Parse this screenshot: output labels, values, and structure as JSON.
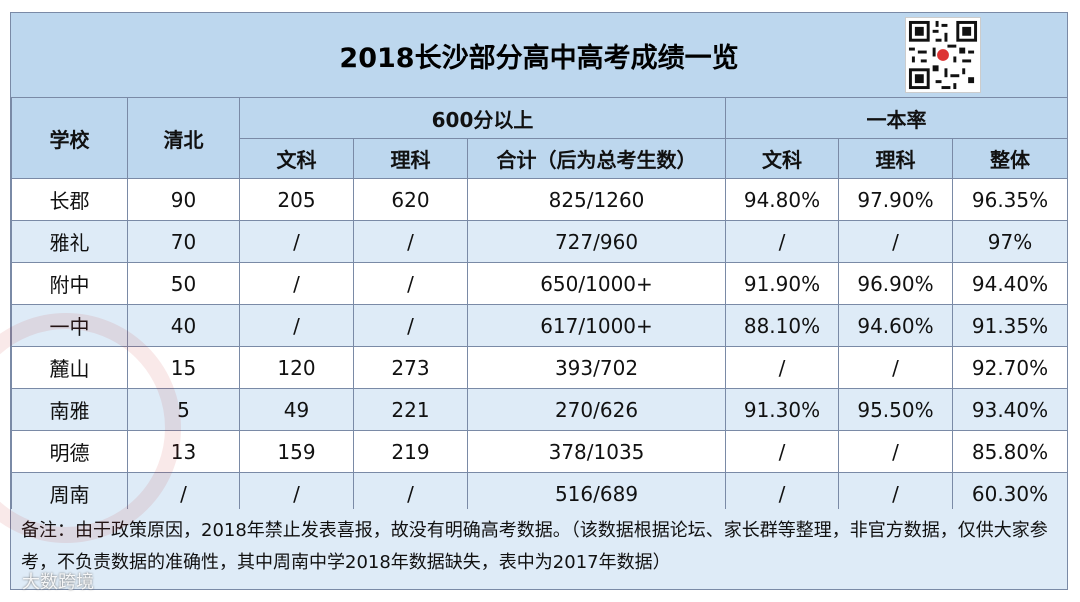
{
  "title": "2018长沙部分高中高考成绩一览",
  "header": {
    "school": "学校",
    "qingbei": "清北",
    "above600": "600分以上",
    "yiben": "一本率",
    "wenke": "文科",
    "like": "理科",
    "total": "合计（后为总考生数）",
    "overall": "整体"
  },
  "rows": [
    {
      "school": "长郡",
      "qingbei": "90",
      "wen600": "205",
      "li600": "620",
      "total": "825/1260",
      "wenRate": "94.80%",
      "liRate": "97.90%",
      "overall": "96.35%"
    },
    {
      "school": "雅礼",
      "qingbei": "70",
      "wen600": "/",
      "li600": "/",
      "total": "727/960",
      "wenRate": "/",
      "liRate": "/",
      "overall": "97%"
    },
    {
      "school": "附中",
      "qingbei": "50",
      "wen600": "/",
      "li600": "/",
      "total": "650/1000+",
      "wenRate": "91.90%",
      "liRate": "96.90%",
      "overall": "94.40%"
    },
    {
      "school": "一中",
      "qingbei": "40",
      "wen600": "/",
      "li600": "/",
      "total": "617/1000+",
      "wenRate": "88.10%",
      "liRate": "94.60%",
      "overall": "91.35%"
    },
    {
      "school": "麓山",
      "qingbei": "15",
      "wen600": "120",
      "li600": "273",
      "total": "393/702",
      "wenRate": "/",
      "liRate": "/",
      "overall": "92.70%"
    },
    {
      "school": "南雅",
      "qingbei": "5",
      "wen600": "49",
      "li600": "221",
      "total": "270/626",
      "wenRate": "91.30%",
      "liRate": "95.50%",
      "overall": "93.40%"
    },
    {
      "school": "明德",
      "qingbei": "13",
      "wen600": "159",
      "li600": "219",
      "total": "378/1035",
      "wenRate": "/",
      "liRate": "/",
      "overall": "85.80%"
    },
    {
      "school": "周南",
      "qingbei": "/",
      "wen600": "/",
      "li600": "/",
      "total": "516/689",
      "wenRate": "/",
      "liRate": "/",
      "overall": "60.30%"
    }
  ],
  "note": "备注：由于政策原因，2018年禁止发表喜报，故没有明确高考数据。（该数据根据论坛、家长群等整理，非官方数据，仅供大家参考，不负责数据的准确性，其中周南中学2018年数据缺失，表中为2017年数据）",
  "brand": "大数跨境"
}
